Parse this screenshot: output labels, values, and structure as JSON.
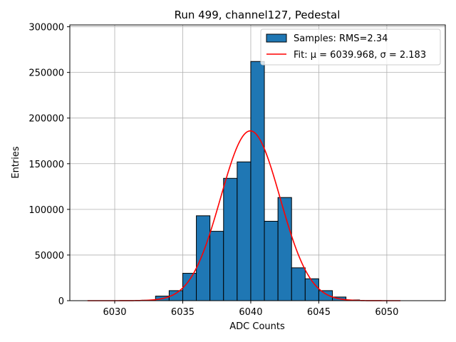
{
  "chart_data": {
    "type": "bar",
    "title": "Run 499, channel127, Pedestal",
    "xlabel": "ADC Counts",
    "ylabel": "Entries",
    "xlim": [
      6026.7,
      6054.3
    ],
    "ylim": [
      0,
      302000
    ],
    "xticks": [
      6030,
      6035,
      6040,
      6045,
      6050
    ],
    "yticks": [
      0,
      50000,
      100000,
      150000,
      200000,
      250000,
      300000
    ],
    "grid": true,
    "legend_position": "top-right",
    "colors": {
      "bars": "#1f77b4",
      "bar_edge": "#000000",
      "fit": "#ff0000"
    },
    "bin_width": 1,
    "bins": [
      {
        "left": 6028,
        "value": 0
      },
      {
        "left": 6029,
        "value": 0
      },
      {
        "left": 6030,
        "value": 0
      },
      {
        "left": 6031,
        "value": 0
      },
      {
        "left": 6032,
        "value": 500
      },
      {
        "left": 6033,
        "value": 5000
      },
      {
        "left": 6034,
        "value": 11000
      },
      {
        "left": 6035,
        "value": 30000
      },
      {
        "left": 6036,
        "value": 93000
      },
      {
        "left": 6037,
        "value": 76000
      },
      {
        "left": 6038,
        "value": 134000
      },
      {
        "left": 6039,
        "value": 152000
      },
      {
        "left": 6040,
        "value": 262000
      },
      {
        "left": 6041,
        "value": 87000
      },
      {
        "left": 6042,
        "value": 113000
      },
      {
        "left": 6043,
        "value": 36000
      },
      {
        "left": 6044,
        "value": 24000
      },
      {
        "left": 6045,
        "value": 11000
      },
      {
        "left": 6046,
        "value": 4000
      },
      {
        "left": 6047,
        "value": 800
      },
      {
        "left": 6048,
        "value": 0
      },
      {
        "left": 6049,
        "value": 0
      },
      {
        "left": 6050,
        "value": 0
      }
    ],
    "fit": {
      "mu": 6039.968,
      "sigma": 2.183,
      "amplitude": 186000,
      "x_range": [
        6028,
        6051
      ]
    },
    "series": [
      {
        "name": "Samples: RMS=2.34",
        "kind": "histogram"
      },
      {
        "name": "Fit: μ = 6039.968, σ = 2.183",
        "kind": "line"
      }
    ]
  }
}
